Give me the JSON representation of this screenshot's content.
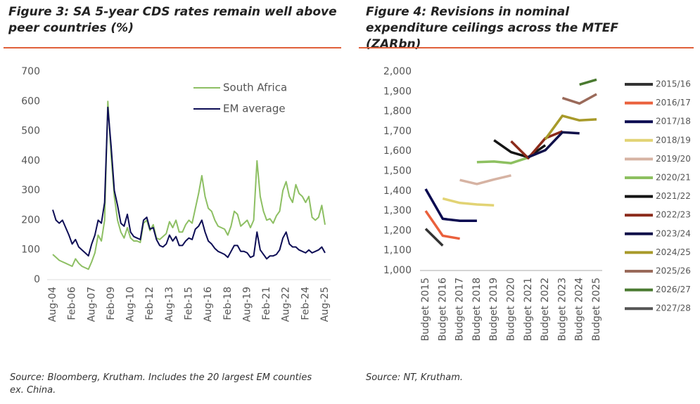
{
  "chart_data": [
    {
      "type": "line",
      "title": "Figure 3: SA 5-year CDS rates remain well above peer countries (%)",
      "source": "Source: Bloomberg, Krutham. Includes the 20 largest EM counties ex. China.",
      "categories": [
        "Aug-04",
        null,
        null,
        null,
        null,
        null,
        "Feb-06",
        null,
        null,
        null,
        null,
        null,
        "Aug-07",
        null,
        null,
        null,
        null,
        null,
        "Feb-09",
        null,
        null,
        null,
        null,
        null,
        "Aug-10",
        null,
        null,
        null,
        null,
        null,
        "Feb-12",
        null,
        null,
        null,
        null,
        null,
        "Aug-13",
        null,
        null,
        null,
        null,
        null,
        "Feb-15",
        null,
        null,
        null,
        null,
        null,
        "Aug-16",
        null,
        null,
        null,
        null,
        null,
        "Feb-18",
        null,
        null,
        null,
        null,
        null,
        "Aug-19",
        null,
        null,
        null,
        null,
        null,
        "Feb-21",
        null,
        null,
        null,
        null,
        null,
        "Aug-22",
        null,
        null,
        null,
        null,
        null,
        "Feb-24",
        null,
        null,
        null,
        null,
        null,
        "Aug-25"
      ],
      "series": [
        {
          "name": "South Africa",
          "color": "#8dbf63",
          "values": [
            85,
            75,
            65,
            60,
            55,
            50,
            45,
            70,
            55,
            45,
            40,
            35,
            60,
            90,
            150,
            130,
            200,
            600,
            420,
            280,
            200,
            160,
            140,
            175,
            140,
            130,
            130,
            125,
            190,
            200,
            165,
            185,
            140,
            135,
            145,
            155,
            195,
            175,
            200,
            160,
            160,
            185,
            200,
            190,
            240,
            290,
            350,
            280,
            240,
            230,
            200,
            180,
            175,
            170,
            150,
            180,
            230,
            220,
            180,
            190,
            200,
            175,
            200,
            400,
            280,
            230,
            200,
            205,
            190,
            215,
            230,
            300,
            330,
            280,
            260,
            320,
            290,
            280,
            260,
            280,
            210,
            200,
            210,
            250,
            185
          ]
        },
        {
          "name": "EM average",
          "color": "#0d0d55",
          "values": [
            235,
            200,
            190,
            200,
            175,
            150,
            120,
            135,
            110,
            100,
            90,
            80,
            120,
            150,
            200,
            190,
            260,
            580,
            450,
            300,
            250,
            190,
            180,
            220,
            160,
            145,
            140,
            135,
            200,
            210,
            170,
            175,
            135,
            115,
            110,
            120,
            150,
            130,
            145,
            115,
            115,
            130,
            140,
            135,
            170,
            180,
            200,
            160,
            130,
            120,
            105,
            95,
            90,
            85,
            75,
            95,
            115,
            115,
            95,
            95,
            90,
            75,
            80,
            160,
            100,
            85,
            70,
            80,
            80,
            85,
            100,
            140,
            160,
            120,
            110,
            110,
            100,
            95,
            90,
            100,
            90,
            95,
            100,
            110,
            90
          ]
        }
      ],
      "ylim": [
        0,
        700
      ],
      "yticks": [
        0,
        100,
        200,
        300,
        400,
        500,
        600,
        700
      ],
      "legend": "upper right"
    },
    {
      "type": "line",
      "title": "Figure 4: Revisions in nominal expenditure ceilings across the MTEF (ZARbn)",
      "source": "Source: NT, Krutham.",
      "categories": [
        "Budget 2015",
        "Budget 2016",
        "Budget 2017",
        "Budget 2018",
        "Budget 2019",
        "Budget 2020",
        "Budget 2021",
        "Budget 2022",
        "Budget 2023",
        "Budget 2024",
        "Budget 2025"
      ],
      "series": [
        {
          "name": "2015/16",
          "color": "#333333",
          "values": [
            1210,
            1125,
            null,
            null,
            null,
            null,
            null,
            null,
            null,
            null,
            null
          ]
        },
        {
          "name": "2016/17",
          "color": "#ea603c",
          "values": [
            1300,
            1175,
            1160,
            null,
            null,
            null,
            null,
            null,
            null,
            null,
            null
          ]
        },
        {
          "name": "2017/18",
          "color": "#0a0a50",
          "values": [
            1410,
            1260,
            1250,
            1250,
            null,
            null,
            null,
            null,
            null,
            null,
            null
          ]
        },
        {
          "name": "2018/19",
          "color": "#e2d374",
          "values": [
            null,
            1362,
            1340,
            1332,
            1328,
            null,
            null,
            null,
            null,
            null,
            null
          ]
        },
        {
          "name": "2019/20",
          "color": "#d6b3a3",
          "values": [
            null,
            null,
            1455,
            1435,
            1458,
            1478,
            null,
            null,
            null,
            null,
            null
          ]
        },
        {
          "name": "2020/21",
          "color": "#8dc060",
          "values": [
            null,
            null,
            null,
            1545,
            1548,
            1540,
            1568,
            null,
            null,
            null,
            null
          ]
        },
        {
          "name": "2021/22",
          "color": "#151515",
          "values": [
            null,
            null,
            null,
            null,
            1655,
            1595,
            1570,
            1630,
            null,
            null,
            null
          ]
        },
        {
          "name": "2022/23",
          "color": "#8b2a1a",
          "values": [
            null,
            null,
            null,
            null,
            null,
            1650,
            1565,
            1665,
            1700,
            null,
            null
          ]
        },
        {
          "name": "2023/24",
          "color": "#10104a",
          "values": [
            null,
            null,
            null,
            null,
            null,
            null,
            1570,
            1605,
            1695,
            1690,
            null
          ]
        },
        {
          "name": "2024/25",
          "color": "#a89a2a",
          "values": [
            null,
            null,
            null,
            null,
            null,
            null,
            null,
            1660,
            1778,
            1755,
            1760
          ]
        },
        {
          "name": "2025/26",
          "color": "#9a6a5a",
          "values": [
            null,
            null,
            null,
            null,
            null,
            null,
            null,
            null,
            1868,
            1840,
            1887
          ]
        },
        {
          "name": "2026/27",
          "color": "#4a7a30",
          "values": [
            null,
            null,
            null,
            null,
            null,
            null,
            null,
            null,
            null,
            1935,
            1960
          ]
        },
        {
          "name": "2027/28",
          "color": "#555555",
          "values": [
            null,
            null,
            null,
            null,
            null,
            null,
            null,
            null,
            null,
            null,
            null
          ]
        }
      ],
      "ylim": [
        1000,
        2000
      ],
      "yticks": [
        {
          "value": 1000,
          "label": "1,000"
        },
        {
          "value": 1100,
          "label": "1,100"
        },
        {
          "value": 1200,
          "label": "1,200"
        },
        {
          "value": 1300,
          "label": "1,300"
        },
        {
          "value": 1400,
          "label": "1,400"
        },
        {
          "value": 1500,
          "label": "1,500"
        },
        {
          "value": 1600,
          "label": "1,600"
        },
        {
          "value": 1700,
          "label": "1,700"
        },
        {
          "value": 1800,
          "label": "1,800"
        },
        {
          "value": 1900,
          "label": "1,900"
        },
        {
          "value": 2000,
          "label": "2,000"
        }
      ],
      "legend": "right"
    }
  ]
}
